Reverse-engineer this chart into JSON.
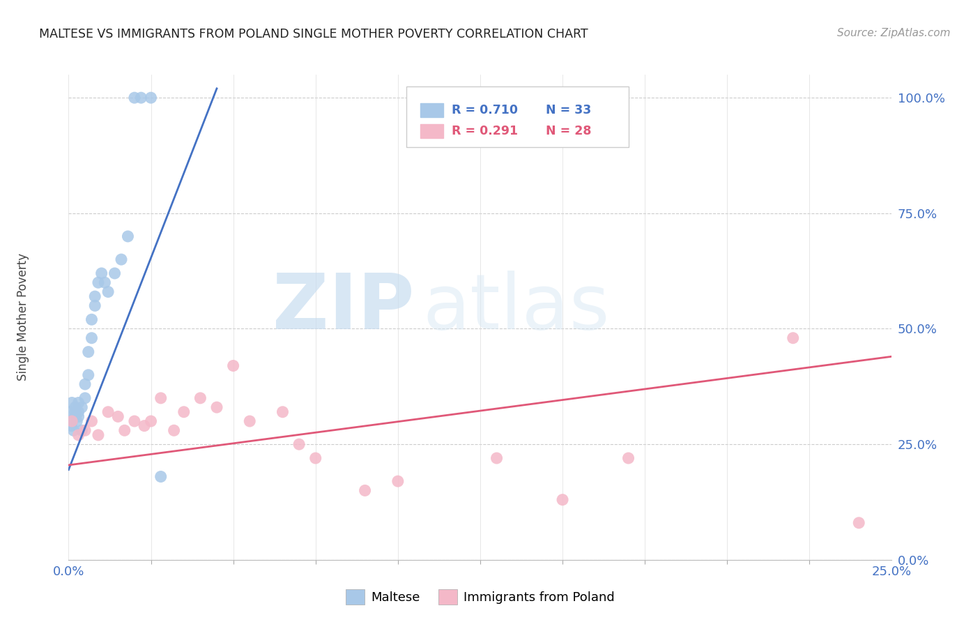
{
  "title": "MALTESE VS IMMIGRANTS FROM POLAND SINGLE MOTHER POVERTY CORRELATION CHART",
  "source": "Source: ZipAtlas.com",
  "ylabel": "Single Mother Poverty",
  "x_min": 0.0,
  "x_max": 0.25,
  "y_min": 0.0,
  "y_max": 1.05,
  "y_ticks": [
    0.0,
    0.25,
    0.5,
    0.75,
    1.0
  ],
  "legend_blue_r": "R = 0.710",
  "legend_blue_n": "N = 33",
  "legend_pink_r": "R = 0.291",
  "legend_pink_n": "N = 28",
  "blue_color": "#a8c8e8",
  "pink_color": "#f4b8c8",
  "blue_line_color": "#4472c4",
  "pink_line_color": "#e05878",
  "blue_scatter_x": [
    0.0005,
    0.0008,
    0.001,
    0.001,
    0.0015,
    0.002,
    0.002,
    0.002,
    0.0025,
    0.003,
    0.003,
    0.003,
    0.004,
    0.004,
    0.005,
    0.005,
    0.006,
    0.006,
    0.007,
    0.007,
    0.008,
    0.008,
    0.009,
    0.01,
    0.011,
    0.012,
    0.014,
    0.016,
    0.018,
    0.02,
    0.022,
    0.025,
    0.028
  ],
  "blue_scatter_y": [
    0.32,
    0.29,
    0.3,
    0.34,
    0.28,
    0.31,
    0.32,
    0.33,
    0.3,
    0.32,
    0.31,
    0.34,
    0.33,
    0.28,
    0.35,
    0.38,
    0.4,
    0.45,
    0.48,
    0.52,
    0.55,
    0.57,
    0.6,
    0.62,
    0.6,
    0.58,
    0.62,
    0.65,
    0.7,
    1.0,
    1.0,
    1.0,
    0.18
  ],
  "pink_scatter_x": [
    0.001,
    0.003,
    0.005,
    0.007,
    0.009,
    0.012,
    0.015,
    0.017,
    0.02,
    0.023,
    0.025,
    0.028,
    0.032,
    0.035,
    0.04,
    0.045,
    0.05,
    0.055,
    0.065,
    0.07,
    0.075,
    0.09,
    0.1,
    0.13,
    0.15,
    0.17,
    0.22,
    0.24
  ],
  "pink_scatter_y": [
    0.3,
    0.27,
    0.28,
    0.3,
    0.27,
    0.32,
    0.31,
    0.28,
    0.3,
    0.29,
    0.3,
    0.35,
    0.28,
    0.32,
    0.35,
    0.33,
    0.42,
    0.3,
    0.32,
    0.25,
    0.22,
    0.15,
    0.17,
    0.22,
    0.13,
    0.22,
    0.48,
    0.08
  ],
  "blue_line_x": [
    0.0,
    0.045
  ],
  "blue_line_y": [
    0.195,
    1.02
  ],
  "pink_line_x": [
    0.0,
    0.25
  ],
  "pink_line_y": [
    0.205,
    0.44
  ]
}
